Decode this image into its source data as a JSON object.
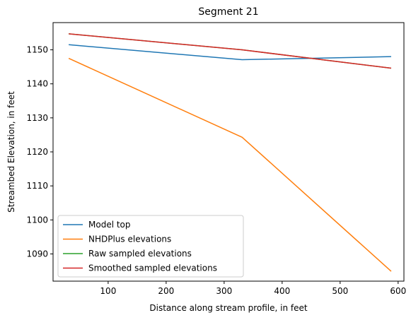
{
  "chart_data": {
    "type": "line",
    "title": "Segment 21",
    "xlabel": "Distance along stream profile, in feet",
    "ylabel": "Streambed Elevation, in feet",
    "xlim": [
      5,
      610
    ],
    "ylim": [
      1082,
      1158
    ],
    "xticks": [
      100,
      200,
      300,
      400,
      500,
      600
    ],
    "yticks": [
      1090,
      1100,
      1110,
      1120,
      1130,
      1140,
      1150
    ],
    "xtick_labels": [
      "100",
      "200",
      "300",
      "400",
      "500",
      "600"
    ],
    "ytick_labels": [
      "1090",
      "1100",
      "1110",
      "1120",
      "1130",
      "1140",
      "1150"
    ],
    "legend_position": "lower-left",
    "series": [
      {
        "name": "Model top",
        "color": "#1f77b4",
        "x": [
          32,
          331,
          588
        ],
        "y": [
          1151.5,
          1147.1,
          1148.0
        ]
      },
      {
        "name": "NHDPlus elevations",
        "color": "#ff7f0e",
        "x": [
          32,
          331,
          588
        ],
        "y": [
          1147.5,
          1124.3,
          1084.9
        ]
      },
      {
        "name": "Raw sampled elevations",
        "color": "#2ca02c",
        "x": [
          32,
          331,
          588
        ],
        "y": [
          1154.7,
          1150.0,
          1144.6
        ]
      },
      {
        "name": "Smoothed sampled elevations",
        "color": "#d62728",
        "x": [
          32,
          331,
          588
        ],
        "y": [
          1154.7,
          1150.0,
          1144.6
        ]
      }
    ]
  }
}
